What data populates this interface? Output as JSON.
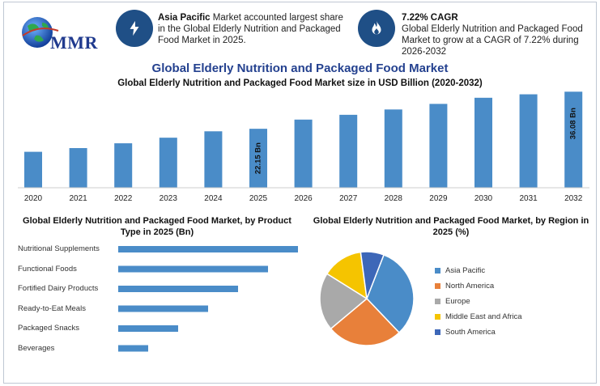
{
  "header": {
    "logo_text": "MMR",
    "region_highlight": {
      "bold": "Asia Pacific",
      "text": " Market accounted largest share in the Global Elderly Nutrition and Packaged Food Market in 2025.",
      "icon": "lightning-icon"
    },
    "cagr_highlight": {
      "bold": "7.22% CAGR",
      "text": "Global Elderly Nutrition and Packaged Food Market to grow at a CAGR of 7.22% during 2026-2032",
      "icon": "flame-icon"
    }
  },
  "colors": {
    "bar": "#4a8cc8",
    "title": "#24418f",
    "badge": "#1f4f86"
  },
  "chart_data": [
    {
      "type": "bar",
      "title": "Global Elderly Nutrition and Packaged Food Market",
      "subtitle": "Global Elderly Nutrition and Packaged Food Market size in USD Billion (2020-2032)",
      "categories": [
        "2020",
        "2021",
        "2022",
        "2023",
        "2024",
        "2025",
        "2026",
        "2027",
        "2028",
        "2029",
        "2030",
        "2031",
        "2032"
      ],
      "values": [
        13.5,
        14.9,
        16.7,
        18.8,
        21.2,
        22.15,
        25.6,
        27.4,
        29.4,
        31.5,
        33.8,
        35.1,
        36.08
      ],
      "data_labels": {
        "5": "22.15 Bn",
        "12": "36.08 Bn"
      },
      "ylim": [
        0,
        38
      ]
    },
    {
      "type": "bar",
      "orientation": "horizontal",
      "title": "Global Elderly Nutrition and Packaged Food Market, by Product Type in 2025 (Bn)",
      "categories": [
        "Nutritional Supplements",
        "Functional Foods",
        "Fortified Dairy Products",
        "Ready-to-Eat Meals",
        "Packaged Snacks",
        "Beverages"
      ],
      "values": [
        6.0,
        5.0,
        4.0,
        3.0,
        2.0,
        1.0
      ],
      "xlim": [
        0,
        6.0
      ]
    },
    {
      "type": "pie",
      "title": "Global Elderly Nutrition and Packaged Food Market, by Region in 2025 (%)",
      "labels": [
        "Asia Pacific",
        "North America",
        "Europe",
        "Middle East and Africa",
        "South America"
      ],
      "values": [
        32,
        26,
        20,
        14,
        8
      ],
      "colors": [
        "#4a8cc8",
        "#e8803a",
        "#a9a9a9",
        "#f5c400",
        "#3d67b8"
      ]
    }
  ]
}
